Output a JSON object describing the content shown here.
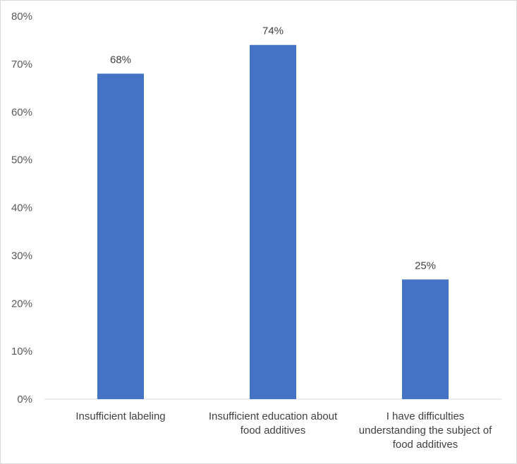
{
  "chart_data": {
    "type": "bar",
    "categories": [
      [
        "Insufficient labeling"
      ],
      [
        "Insufficient education about",
        "food additives"
      ],
      [
        "I have difficulties",
        "understanding the subject of",
        "food additives"
      ]
    ],
    "values": [
      68,
      74,
      25
    ],
    "data_labels": [
      "68%",
      "74%",
      "25%"
    ],
    "ylim": [
      0,
      80
    ],
    "yticks": [
      "0%",
      "10%",
      "20%",
      "30%",
      "40%",
      "50%",
      "60%",
      "70%",
      "80%"
    ],
    "grid": false,
    "legend": "none",
    "colors": {
      "bar": "#4472C4",
      "axis": "#d9d9d9",
      "text": "#404040",
      "tick_text": "#595959"
    }
  }
}
